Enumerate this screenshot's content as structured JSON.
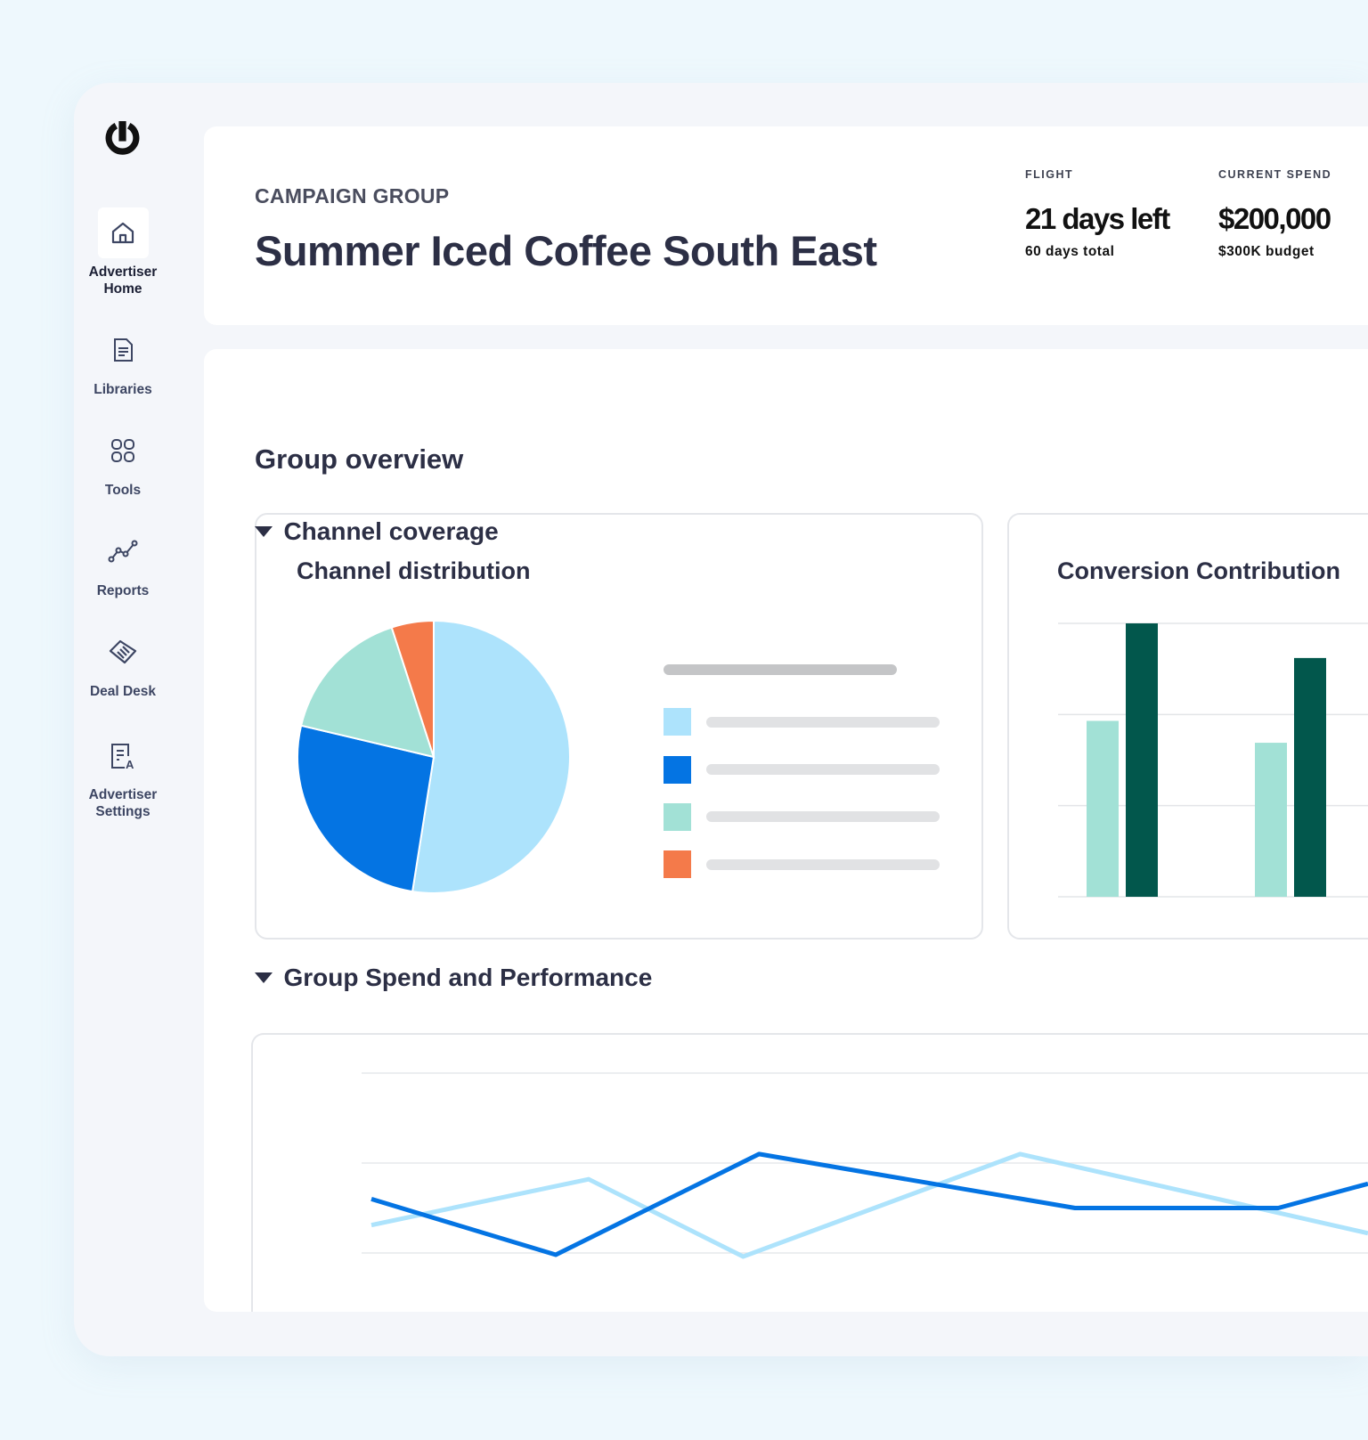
{
  "sidebar": {
    "logo": "power-logo",
    "items": [
      {
        "label": "Advertiser Home",
        "icon": "home-icon",
        "active": true
      },
      {
        "label": "Libraries",
        "icon": "document-icon"
      },
      {
        "label": "Tools",
        "icon": "grid-icon"
      },
      {
        "label": "Reports",
        "icon": "line-graph-icon"
      },
      {
        "label": "Deal Desk",
        "icon": "handshake-icon"
      },
      {
        "label": "Advertiser Settings",
        "icon": "settings-document-icon"
      }
    ]
  },
  "header": {
    "eyebrow": "CAMPAIGN GROUP",
    "title": "Summer Iced Coffee South East",
    "flight": {
      "label": "FLIGHT",
      "value": "21 days left",
      "sub": "60 days total"
    },
    "spend": {
      "label": "CURRENT SPEND",
      "value": "$200,000",
      "sub": "$300K budget"
    }
  },
  "main": {
    "title": "Group overview",
    "channel_section": "Channel coverage",
    "spend_section": "Group Spend and Performance"
  },
  "colors": {
    "light_blue": "#ade3fc",
    "blue": "#0474e3",
    "mint": "#a2e1d6",
    "orange": "#f47a4a",
    "dark_green": "#02574c"
  },
  "chart_data": [
    {
      "type": "pie",
      "title": "Channel distribution",
      "values": [
        52.5,
        26.2,
        16.3,
        5.0
      ],
      "colors": [
        "#ade3fc",
        "#0474e3",
        "#a2e1d6",
        "#f47a4a"
      ],
      "legend": "right"
    },
    {
      "type": "bar",
      "title": "Conversion Contribution",
      "categories": [
        "",
        ""
      ],
      "series": [
        {
          "values": [
            1.93,
            1.69
          ],
          "color": "#a2e1d6"
        },
        {
          "values": [
            3.0,
            2.62
          ],
          "color": "#02574c"
        }
      ],
      "ylim": [
        0,
        3
      ],
      "grid": true
    },
    {
      "type": "line",
      "series": [
        {
          "color": "#0474e3",
          "points": [
            [
              0,
              1.6
            ],
            [
              1.85,
              0.98
            ],
            [
              3.89,
              2.1
            ],
            [
              7.06,
              1.5
            ],
            [
              9.1,
              1.5
            ],
            [
              10,
              1.77
            ]
          ]
        },
        {
          "color": "#ade3fc",
          "points": [
            [
              0,
              1.31
            ],
            [
              2.18,
              1.82
            ],
            [
              3.73,
              0.96
            ],
            [
              6.51,
              2.1
            ],
            [
              10,
              1.22
            ]
          ]
        }
      ],
      "xlim": [
        0,
        10
      ],
      "ylim": [
        0,
        3
      ],
      "grid": true
    }
  ]
}
